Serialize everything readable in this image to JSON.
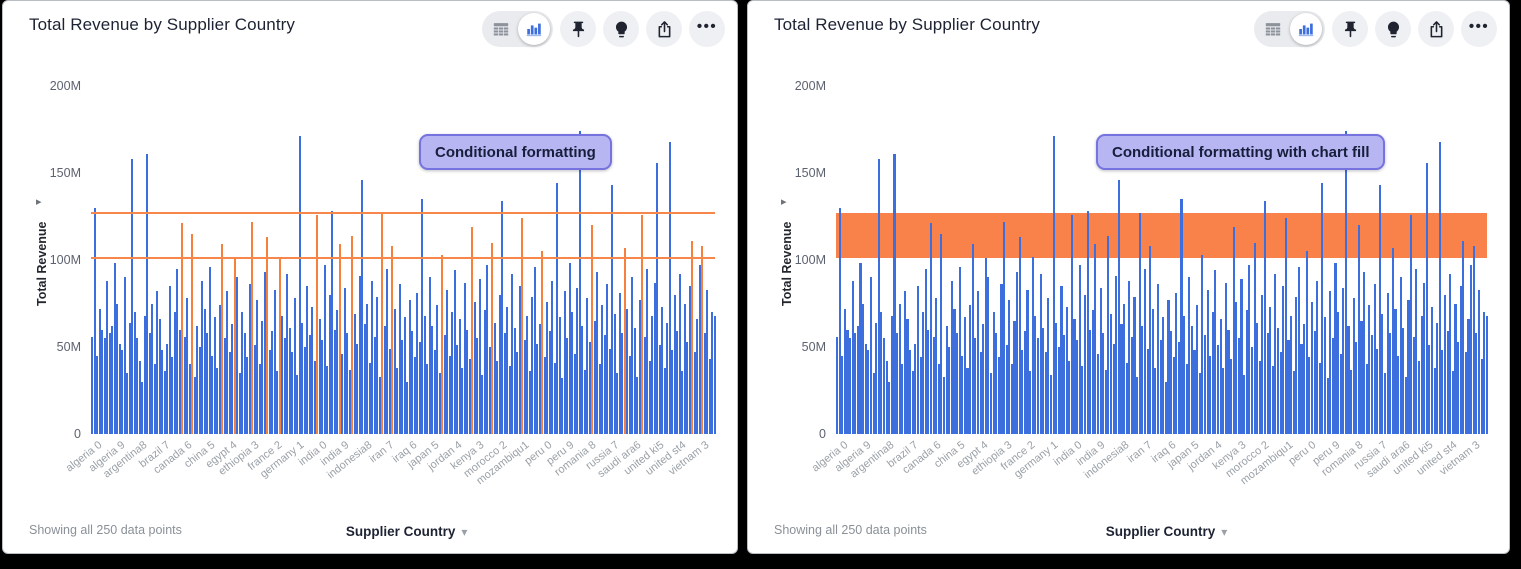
{
  "panels": [
    {
      "title": "Total Revenue by Supplier Country",
      "callout": "Conditional formatting",
      "y_axis_label": "Total Revenue",
      "x_axis_label": "Supplier Country",
      "footer_note": "Showing all 250 data points"
    },
    {
      "title": "Total Revenue by Supplier Country",
      "callout": "Conditional formatting with chart fill",
      "y_axis_label": "Total Revenue",
      "x_axis_label": "Supplier Country",
      "footer_note": "Showing all 250 data points"
    }
  ],
  "toolbar": {
    "buttons": [
      "table-view",
      "bar-chart-view",
      "pin",
      "insights",
      "share",
      "more-options"
    ],
    "selected_view": "bar-chart-view"
  },
  "icons": {
    "dropdown_caret": "▾",
    "axis_arrow": "▸",
    "ellipsis": "•••"
  },
  "colors": {
    "bar_blue": "#3d6ede",
    "bar_highlight_orange": "#f5813d",
    "band_orange": "#f8824a",
    "threshold_line_orange": "#f6864a",
    "callout_bg": "#b7b6f2",
    "callout_border": "#7672e0",
    "title_text": "#1d2333",
    "tick_text": "#5c6270",
    "xlabel_text": "#9aa0a6"
  },
  "chart_data": {
    "type": "bar",
    "title": "Total Revenue by Supplier Country",
    "xlabel": "Supplier Country",
    "ylabel": "Total Revenue",
    "ylim_millions": [
      0,
      200
    ],
    "y_ticks": [
      "200M",
      "150M",
      "100M",
      "50M",
      "0"
    ],
    "y_tick_values_millions": [
      200,
      150,
      100,
      50,
      0
    ],
    "n_points": 250,
    "grid": false,
    "x_tick_labels": [
      "algeria 0",
      "algeria 9",
      "argentina8",
      "brazil 7",
      "canada 6",
      "china 5",
      "egypt 4",
      "ethiopia 3",
      "france 2",
      "germany 1",
      "india 0",
      "india 9",
      "indonesia8",
      "iran 7",
      "iraq 6",
      "japan 5",
      "jordan 4",
      "kenya 3",
      "morocco 2",
      "mozambiqu1",
      "peru 0",
      "peru 9",
      "romania 8",
      "russia 7",
      "saudi ara6",
      "united ki5",
      "united st4",
      "vietnam 3"
    ],
    "values_millions": [
      56,
      130,
      45,
      72,
      60,
      55,
      88,
      58,
      62,
      98,
      75,
      52,
      48,
      90,
      35,
      64,
      158,
      70,
      55,
      42,
      30,
      68,
      161,
      58,
      75,
      40,
      82,
      66,
      48,
      36,
      52,
      85,
      44,
      70,
      95,
      60,
      121,
      56,
      78,
      40,
      115,
      33,
      62,
      50,
      88,
      72,
      58,
      96,
      45,
      67,
      38,
      74,
      109,
      55,
      82,
      47,
      63,
      101,
      90,
      35,
      70,
      58,
      44,
      86,
      122,
      51,
      77,
      40,
      65,
      93,
      113,
      48,
      59,
      83,
      36,
      102,
      68,
      55,
      92,
      61,
      47,
      78,
      34,
      171,
      64,
      50,
      85,
      57,
      73,
      42,
      126,
      66,
      54,
      97,
      39,
      80,
      128,
      60,
      71,
      109,
      46,
      84,
      58,
      37,
      114,
      69,
      52,
      91,
      146,
      63,
      75,
      41,
      88,
      56,
      79,
      33,
      127,
      62,
      95,
      49,
      108,
      72,
      38,
      86,
      54,
      67,
      30,
      77,
      59,
      44,
      81,
      53,
      135,
      68,
      40,
      90,
      62,
      48,
      74,
      35,
      103,
      57,
      83,
      45,
      70,
      94,
      51,
      66,
      38,
      87,
      60,
      43,
      119,
      76,
      55,
      89,
      34,
      71,
      97,
      50,
      110,
      64,
      42,
      80,
      134,
      58,
      73,
      39,
      92,
      61,
      47,
      85,
      124,
      54,
      68,
      36,
      79,
      96,
      52,
      63,
      105,
      44,
      76,
      59,
      88,
      41,
      144,
      67,
      32,
      82,
      55,
      98,
      70,
      46,
      84,
      174,
      62,
      37,
      78,
      53,
      120,
      65,
      93,
      40,
      74,
      57,
      86,
      49,
      143,
      69,
      35,
      81,
      58,
      107,
      72,
      45,
      90,
      61,
      33,
      77,
      126,
      56,
      95,
      42,
      68,
      87,
      156,
      51,
      73,
      38,
      64,
      168,
      48,
      80,
      59,
      92,
      36,
      75,
      53,
      85,
      111,
      47,
      66,
      97,
      108,
      58,
      83,
      43,
      70,
      68
    ],
    "conditional_format": {
      "lower_threshold_millions": 101,
      "upper_threshold_millions": 127,
      "highlight_color": "#f5813d"
    },
    "charts": [
      {
        "annotation": "Conditional formatting",
        "style": "highlight-bars-between-thresholds-with-lines"
      },
      {
        "annotation": "Conditional formatting with chart fill",
        "style": "filled-band-between-thresholds"
      }
    ]
  }
}
